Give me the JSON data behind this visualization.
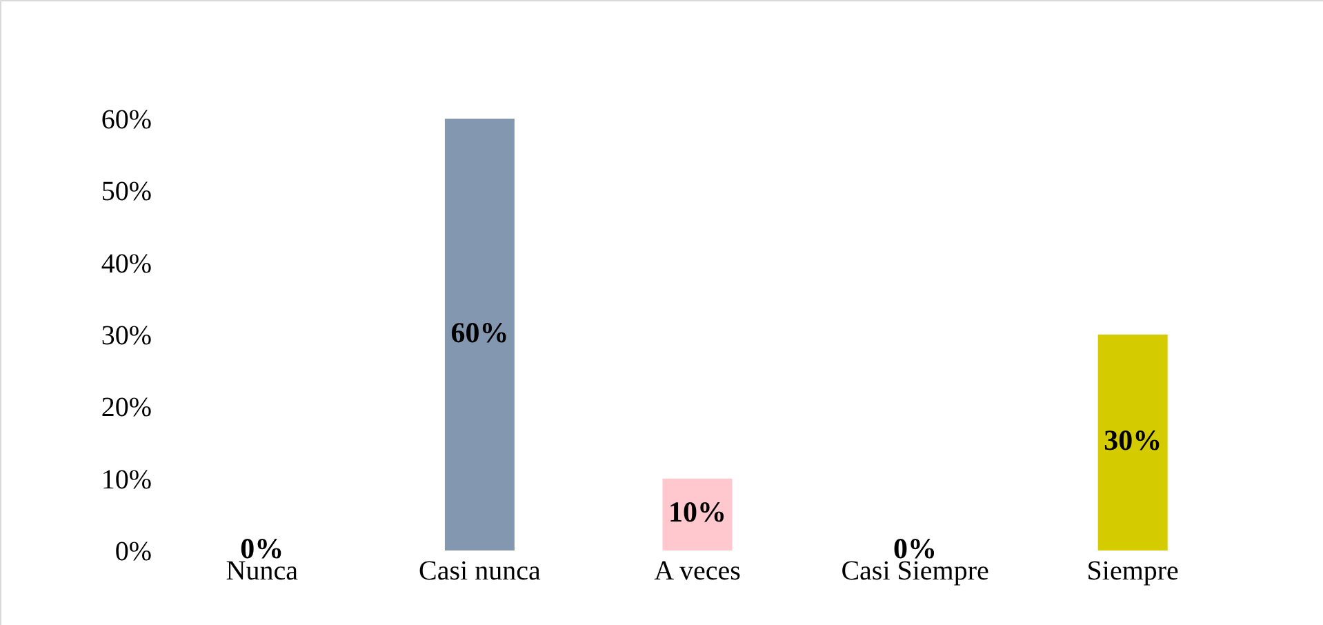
{
  "chart_data": {
    "type": "bar",
    "categories": [
      "Nunca",
      "Casi nunca",
      "A veces",
      "Casi Siempre",
      "Siempre"
    ],
    "values": [
      0,
      60,
      10,
      0,
      30
    ],
    "colors": [
      "#00853f",
      "#8497b0",
      "#ffc7ce",
      "#41719c",
      "#d4cc00"
    ],
    "value_labels": [
      "0%",
      "60%",
      "10%",
      "0%",
      "30%"
    ],
    "ylim": [
      0,
      60
    ],
    "yticks": [
      {
        "value": 0,
        "label": "0%"
      },
      {
        "value": 10,
        "label": "10%"
      },
      {
        "value": 20,
        "label": "20%"
      },
      {
        "value": 30,
        "label": "30%"
      },
      {
        "value": 40,
        "label": "40%"
      },
      {
        "value": 50,
        "label": "50%"
      },
      {
        "value": 60,
        "label": "60%"
      }
    ],
    "grid": false
  }
}
